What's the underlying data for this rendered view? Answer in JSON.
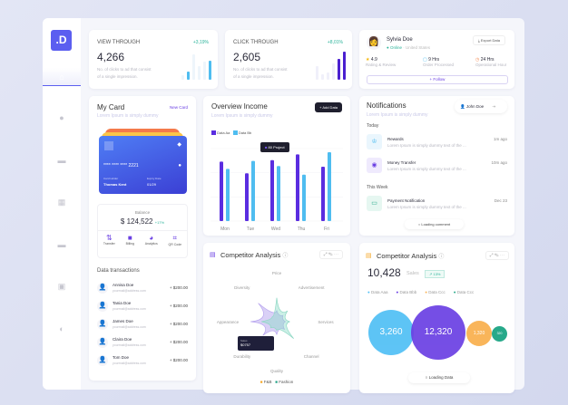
{
  "logo": ".D",
  "sidebar": {
    "icons": [
      "home-icon",
      "plus-circle-icon",
      "image-icon",
      "grid-icon",
      "inbox-icon",
      "user-card-icon",
      "contrast-icon"
    ]
  },
  "view_through": {
    "title": "VIEW THROUGH",
    "change": "+3,19%",
    "value": "4,266",
    "desc1": "No. of clicks to ad that consist",
    "desc2": "of a single impression."
  },
  "click_through": {
    "title": "CLICK THROUGH",
    "change": "+8,01%",
    "value": "2,605",
    "desc1": "No. of clicks to ad that consist",
    "desc2": "of a single impression."
  },
  "profile": {
    "name": "Sylvia Doe",
    "status": "Online",
    "location": "United States",
    "export": "Export Data",
    "stats": [
      {
        "value": "4.9",
        "label": "Rating & Review"
      },
      {
        "value": "9 Hrs",
        "label": "Order Processed"
      },
      {
        "value": "24 Hrs",
        "label": "Operational Hour"
      }
    ],
    "follow": "+ Follow"
  },
  "my_card": {
    "title": "My Card",
    "new_card": "New Card",
    "subtitle": "Lorem Ipsum is simply dummy",
    "number": "**** **** **** 2221",
    "holder_label": "Card Holder",
    "holder": "Thomas Kent",
    "expiry_label": "Expiry Date",
    "expiry": "01/29",
    "balance_label": "Balance",
    "balance": "$ 124,522",
    "balance_change": "+17%",
    "actions": [
      "Transfer",
      "Billing",
      "Analytics",
      "QR Code"
    ],
    "transactions_title": "Data transactions",
    "transactions": [
      {
        "name": "Annisa Doe",
        "email": "yourmail@address.com",
        "amount": "+ $200.00"
      },
      {
        "name": "Tania Doe",
        "email": "yourmail@address.com",
        "amount": "+ $200.00"
      },
      {
        "name": "James Doe",
        "email": "yourmail@address.com",
        "amount": "+ $200.00"
      },
      {
        "name": "Claira Doe",
        "email": "yourmail@address.com",
        "amount": "+ $200.00"
      },
      {
        "name": "Tom Doe",
        "email": "yourmail@address.com",
        "amount": "+ $200.00"
      }
    ]
  },
  "overview": {
    "title": "Overview Income",
    "subtitle": "Lorem Ipsum is simply dummy",
    "add": "+ Add Data",
    "tooltip": "80 Project"
  },
  "chart_data": {
    "type": "bar",
    "categories": [
      "Mon",
      "Tue",
      "Wed",
      "Thu",
      "Fri"
    ],
    "series": [
      {
        "name": "Data Aa",
        "color": "#5a2de0",
        "values": [
          82,
          66,
          84,
          92,
          75
        ]
      },
      {
        "name": "Data Bb",
        "color": "#4fbdf0",
        "values": [
          72,
          83,
          76,
          64,
          95
        ]
      }
    ],
    "ylim": [
      0,
      100
    ],
    "grid": true
  },
  "notifications": {
    "title": "Notifications",
    "subtitle": "Lorem Ipsum is simply dummy",
    "user": "John Doe",
    "today": "Today",
    "week": "This Week",
    "items": [
      {
        "title": "Rewards",
        "text": "Lorem Ipsum is simply dummy text of the ...",
        "time": "1m ago"
      },
      {
        "title": "Money Transfer",
        "text": "Lorem Ipsum is simply dummy text of the ...",
        "time": "10m ago"
      },
      {
        "title": "Payment Notification",
        "text": "Lorem Ipsum is simply dummy text of the ...",
        "time": "Dec 23"
      }
    ],
    "loading": "Loading comment"
  },
  "radar": {
    "title": "Competitor Analysis",
    "axes": [
      "Price",
      "Advertisement",
      "Services",
      "Channel",
      "Quality",
      "Durability",
      "Appearance",
      "Diversity"
    ],
    "series": [
      {
        "name": "F&B",
        "color": "#f5a623",
        "values": [
          0.25,
          0.2,
          0.2,
          0.25,
          0.3,
          0.45,
          0.6,
          0.6
        ]
      },
      {
        "name": "Fashion",
        "color": "#1e9e82",
        "values": [
          0.55,
          0.35,
          0.3,
          0.55,
          0.2,
          0.2,
          0.35,
          0.15
        ]
      }
    ],
    "tooltip_label": "Sales",
    "tooltip_value": "$0757"
  },
  "bubbles": {
    "title": "Competitor Analysis",
    "value": "10,428",
    "unit": "Sales",
    "badge": "↗ 13%",
    "legend": [
      {
        "name": "Data Aaa",
        "color": "#55c1f5",
        "value": "3,260"
      },
      {
        "name": "Data Bbb",
        "color": "#6a3fe3",
        "value": "12,320"
      },
      {
        "name": "Data Ccc",
        "color": "#f9b55a",
        "value": "1,320"
      },
      {
        "name": "Data Ccc",
        "color": "#27a98a",
        "value": "320"
      }
    ],
    "loading": "Loading Data"
  }
}
